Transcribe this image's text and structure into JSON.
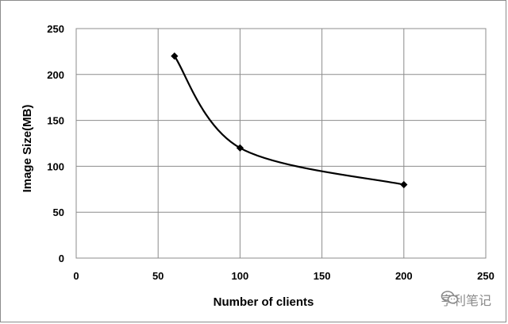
{
  "chart_data": {
    "type": "line",
    "title": "",
    "xlabel": "Number of clients",
    "ylabel": "Image Size(MB)",
    "x_ticks": [
      "0",
      "50",
      "100",
      "150",
      "200",
      "250"
    ],
    "y_ticks": [
      "0",
      "50",
      "100",
      "150",
      "200",
      "250"
    ],
    "xlim": [
      0,
      250
    ],
    "ylim": [
      0,
      250
    ],
    "grid": true,
    "smooth": true,
    "marker": "diamond",
    "series": [
      {
        "color": "#000000",
        "x": [
          60,
          100,
          200
        ],
        "y": [
          220,
          120,
          80
        ]
      }
    ]
  },
  "watermark": {
    "text": "亨利笔记",
    "icon": "wechat-icon"
  }
}
